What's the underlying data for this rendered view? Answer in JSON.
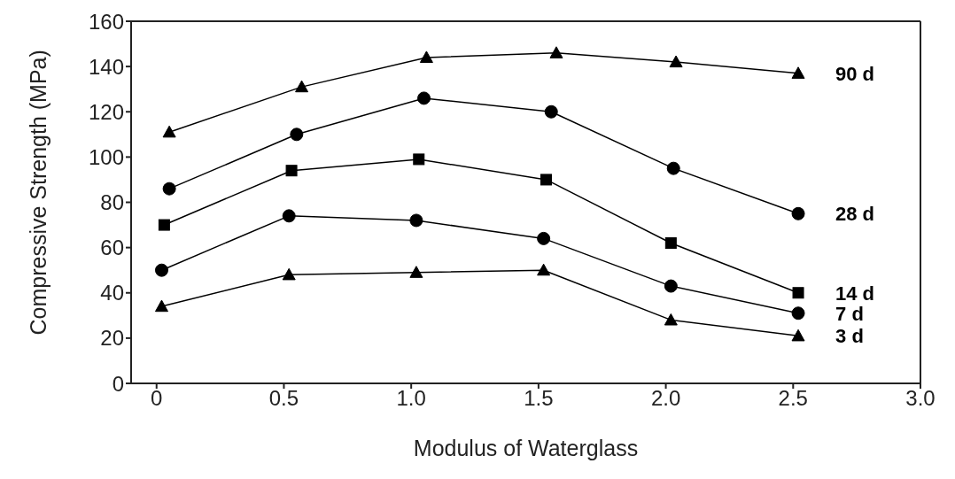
{
  "chart_data": {
    "type": "line",
    "xlabel": "Modulus of Waterglass",
    "ylabel": "Compressive Strength (MPa)",
    "xlim": [
      -0.1,
      3.0
    ],
    "xticks": [
      {
        "value": 0,
        "label": "0"
      },
      0.5,
      {
        "value": 1,
        "label": "1.0"
      },
      1.5,
      {
        "value": 2,
        "label": "2.0"
      },
      2.5,
      {
        "value": 3,
        "label": "3.0"
      }
    ],
    "ylim": [
      0,
      160
    ],
    "yticks": [
      0,
      20,
      40,
      60,
      80,
      100,
      120,
      140,
      160
    ],
    "legend": false,
    "line_style": "solid",
    "series": [
      {
        "name": "90 d",
        "color": "#000000",
        "marker": "triangle",
        "x": [
          0.05,
          0.57,
          1.06,
          1.57,
          2.04,
          2.52
        ],
        "values": [
          111,
          131,
          144,
          146,
          142,
          137
        ]
      },
      {
        "name": "28 d",
        "color": "#000000",
        "marker": "circle",
        "x": [
          0.05,
          0.55,
          1.05,
          1.55,
          2.03,
          2.52
        ],
        "values": [
          86,
          110,
          126,
          120,
          95,
          75
        ]
      },
      {
        "name": "14 d",
        "color": "#000000",
        "marker": "square",
        "x": [
          0.03,
          0.53,
          1.03,
          1.53,
          2.02,
          2.52
        ],
        "values": [
          70,
          94,
          99,
          90,
          62,
          40
        ]
      },
      {
        "name": "7 d",
        "color": "#000000",
        "marker": "circle",
        "x": [
          0.02,
          0.52,
          1.02,
          1.52,
          2.02,
          2.52
        ],
        "values": [
          50,
          74,
          72,
          64,
          43,
          31
        ]
      },
      {
        "name": "3 d",
        "color": "#000000",
        "marker": "triangle",
        "x": [
          0.02,
          0.52,
          1.02,
          1.52,
          2.02,
          2.52
        ],
        "values": [
          34,
          48,
          49,
          50,
          28,
          21
        ]
      }
    ]
  }
}
